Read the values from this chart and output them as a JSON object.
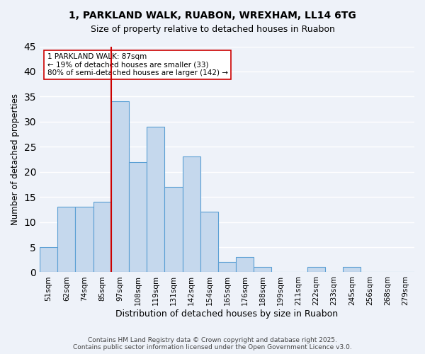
{
  "title_line1": "1, PARKLAND WALK, RUABON, WREXHAM, LL14 6TG",
  "title_line2": "Size of property relative to detached houses in Ruabon",
  "xlabel": "Distribution of detached houses by size in Ruabon",
  "ylabel": "Number of detached properties",
  "categories": [
    "51sqm",
    "62sqm",
    "74sqm",
    "85sqm",
    "97sqm",
    "108sqm",
    "119sqm",
    "131sqm",
    "142sqm",
    "154sqm",
    "165sqm",
    "176sqm",
    "188sqm",
    "199sqm",
    "211sqm",
    "222sqm",
    "233sqm",
    "245sqm",
    "256sqm",
    "268sqm",
    "279sqm"
  ],
  "values": [
    5,
    13,
    13,
    14,
    34,
    22,
    29,
    17,
    23,
    12,
    2,
    3,
    1,
    0,
    0,
    1,
    0,
    1,
    0,
    0,
    0
  ],
  "bar_color": "#c5d8ed",
  "bar_edge_color": "#5a9fd4",
  "vline_color": "#cc0000",
  "annotation_text": "1 PARKLAND WALK: 87sqm\n← 19% of detached houses are smaller (33)\n80% of semi-detached houses are larger (142) →",
  "annotation_box_color": "#ffffff",
  "annotation_box_edge": "#cc0000",
  "ylim": [
    0,
    45
  ],
  "yticks": [
    0,
    5,
    10,
    15,
    20,
    25,
    30,
    35,
    40,
    45
  ],
  "footer": "Contains HM Land Registry data © Crown copyright and database right 2025.\nContains public sector information licensed under the Open Government Licence v3.0.",
  "bg_color": "#eef2f9",
  "grid_color": "#ffffff"
}
